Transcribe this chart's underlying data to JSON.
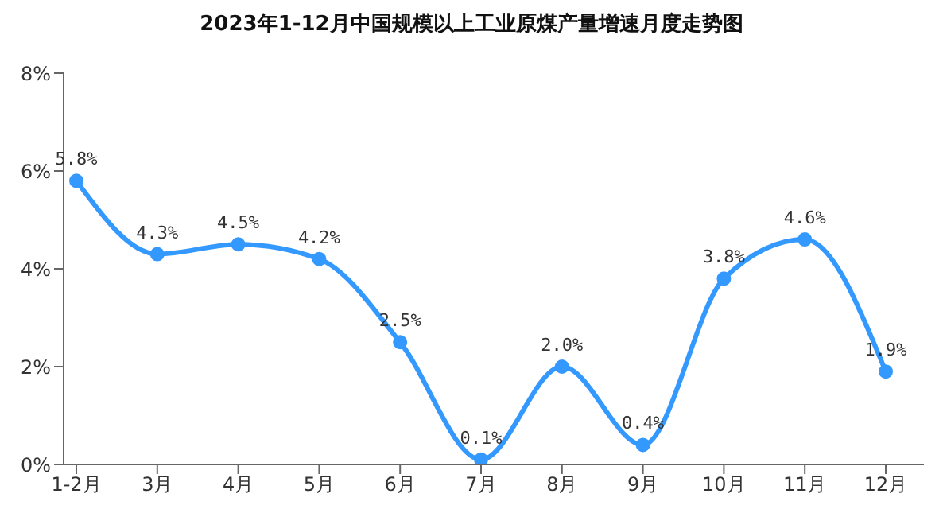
{
  "chart_data": {
    "type": "line",
    "title": "2023年1-12月中国规模以上工业原煤产量增速月度走势图",
    "categories": [
      "1-2月",
      "3月",
      "4月",
      "5月",
      "6月",
      "7月",
      "8月",
      "9月",
      "10月",
      "11月",
      "12月"
    ],
    "series": [
      {
        "color": "#3399ff",
        "values": [
          5.8,
          4.3,
          4.5,
          4.2,
          2.5,
          0.1,
          2.0,
          0.4,
          3.8,
          4.6,
          1.9
        ],
        "value_labels": [
          "5.8%",
          "4.3%",
          "4.5%",
          "4.2%",
          "2.5%",
          "0.1%",
          "2.0%",
          "0.4%",
          "3.8%",
          "4.6%",
          "1.9%"
        ]
      }
    ],
    "ylim": [
      0,
      8
    ],
    "yticks": [
      {
        "value": 0,
        "label": "0%"
      },
      {
        "value": 2,
        "label": "2%"
      },
      {
        "value": 4,
        "label": "4%"
      },
      {
        "value": 6,
        "label": "6%"
      },
      {
        "value": 8,
        "label": "8%"
      }
    ],
    "grid": false,
    "legend": false,
    "marker": "circle",
    "line_style": "solid"
  }
}
